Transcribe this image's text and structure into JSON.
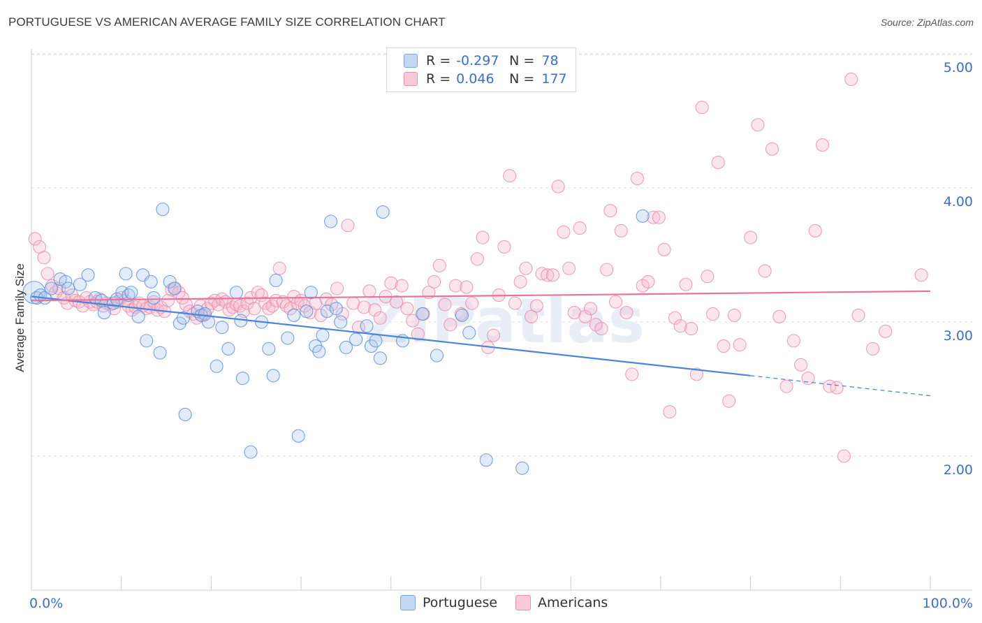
{
  "title": "PORTUGUESE VS AMERICAN AVERAGE FAMILY SIZE CORRELATION CHART",
  "source": "Source: ZipAtlas.com",
  "watermark": "ZIPatlas",
  "legend_top": {
    "rows": [
      {
        "r_label": "R =",
        "r_value": "-0.297",
        "n_label": "N =",
        "n_value": "78",
        "color": "#aac8ee"
      },
      {
        "r_label": "R =",
        "r_value": "0.046",
        "n_label": "N =",
        "n_value": "177",
        "color": "#f6b8cc"
      }
    ]
  },
  "legend_bottom": [
    {
      "label": "Portuguese",
      "color": "#aac8ee"
    },
    {
      "label": "Americans",
      "color": "#f6b8cc"
    }
  ],
  "chart_data": {
    "type": "scatter",
    "title": "PORTUGUESE VS AMERICAN AVERAGE FAMILY SIZE CORRELATION CHART",
    "xlabel": "",
    "ylabel": "Average Family Size",
    "x_tick_labels": [
      "0.0%",
      "100.0%"
    ],
    "y_ticks": [
      2.0,
      3.0,
      4.0,
      5.0
    ],
    "y_tick_labels": [
      "2.00",
      "3.00",
      "4.00",
      "5.00"
    ],
    "xlim": [
      0,
      100
    ],
    "ylim": [
      1.0,
      5.1
    ],
    "grid": true,
    "colors": {
      "portuguese": "#4a86d8",
      "americans": "#e8749c",
      "axis_label": "#3a6fcf"
    },
    "series": [
      {
        "name": "Portuguese",
        "r": -0.297,
        "n": 78,
        "trend": {
          "x0": 0,
          "y0": 3.19,
          "x1": 80,
          "y1": 2.6,
          "dash_to_x": 100,
          "dash_to_y": 2.45
        },
        "points": [
          [
            0.3,
            3.22
          ],
          [
            0.6,
            3.18
          ],
          [
            1.0,
            3.2
          ],
          [
            1.5,
            3.18
          ],
          [
            2.2,
            3.25
          ],
          [
            3.2,
            3.32
          ],
          [
            3.8,
            3.3
          ],
          [
            4.1,
            3.25
          ],
          [
            5.4,
            3.28
          ],
          [
            6.3,
            3.35
          ],
          [
            7.1,
            3.18
          ],
          [
            7.8,
            3.16
          ],
          [
            8.1,
            3.07
          ],
          [
            9.1,
            3.14
          ],
          [
            9.5,
            3.17
          ],
          [
            10.1,
            3.22
          ],
          [
            10.5,
            3.36
          ],
          [
            10.8,
            3.2
          ],
          [
            11.1,
            3.22
          ],
          [
            11.9,
            3.04
          ],
          [
            12.4,
            3.35
          ],
          [
            12.8,
            2.86
          ],
          [
            13.3,
            3.3
          ],
          [
            13.6,
            3.18
          ],
          [
            14.3,
            2.77
          ],
          [
            14.6,
            3.84
          ],
          [
            15.4,
            3.3
          ],
          [
            15.9,
            3.25
          ],
          [
            16.5,
            2.99
          ],
          [
            16.9,
            3.03
          ],
          [
            17.1,
            2.31
          ],
          [
            18.5,
            3.08
          ],
          [
            18.9,
            3.05
          ],
          [
            19.3,
            3.06
          ],
          [
            19.7,
            3.0
          ],
          [
            20.6,
            2.67
          ],
          [
            21.2,
            2.96
          ],
          [
            21.9,
            2.8
          ],
          [
            22.8,
            3.22
          ],
          [
            23.3,
            3.01
          ],
          [
            23.5,
            2.58
          ],
          [
            24.4,
            2.03
          ],
          [
            25.6,
            3.0
          ],
          [
            26.4,
            2.8
          ],
          [
            26.9,
            2.6
          ],
          [
            27.2,
            3.31
          ],
          [
            28.5,
            2.88
          ],
          [
            29.2,
            3.05
          ],
          [
            29.7,
            2.15
          ],
          [
            30.6,
            3.08
          ],
          [
            31.1,
            3.22
          ],
          [
            31.6,
            2.82
          ],
          [
            32.0,
            2.78
          ],
          [
            32.4,
            2.9
          ],
          [
            32.9,
            3.08
          ],
          [
            33.3,
            3.75
          ],
          [
            33.9,
            3.1
          ],
          [
            34.4,
            3.0
          ],
          [
            35.0,
            2.81
          ],
          [
            36.1,
            2.87
          ],
          [
            37.3,
            2.97
          ],
          [
            37.8,
            2.82
          ],
          [
            38.3,
            2.86
          ],
          [
            38.8,
            2.73
          ],
          [
            39.1,
            3.82
          ],
          [
            41.3,
            2.86
          ],
          [
            43.5,
            3.06
          ],
          [
            45.1,
            2.75
          ],
          [
            47.9,
            3.05
          ],
          [
            48.7,
            2.92
          ],
          [
            50.6,
            1.97
          ],
          [
            54.6,
            1.91
          ],
          [
            68.0,
            3.79
          ]
        ]
      },
      {
        "name": "Americans",
        "r": 0.046,
        "n": 177,
        "trend": {
          "x0": 0,
          "y0": 3.16,
          "x1": 100,
          "y1": 3.23
        },
        "points": [
          [
            0.4,
            3.62
          ],
          [
            0.9,
            3.56
          ],
          [
            1.4,
            3.48
          ],
          [
            1.8,
            3.36
          ],
          [
            2.3,
            3.27
          ],
          [
            2.7,
            3.22
          ],
          [
            3.1,
            3.25
          ],
          [
            3.6,
            3.18
          ],
          [
            4.0,
            3.14
          ],
          [
            4.5,
            3.2
          ],
          [
            4.9,
            3.16
          ],
          [
            5.3,
            3.15
          ],
          [
            5.7,
            3.12
          ],
          [
            6.1,
            3.18
          ],
          [
            6.5,
            3.15
          ],
          [
            6.9,
            3.13
          ],
          [
            7.3,
            3.15
          ],
          [
            7.6,
            3.17
          ],
          [
            8.0,
            3.12
          ],
          [
            8.4,
            3.14
          ],
          [
            8.8,
            3.13
          ],
          [
            9.2,
            3.1
          ],
          [
            9.6,
            3.15
          ],
          [
            10.0,
            3.18
          ],
          [
            10.4,
            3.16
          ],
          [
            10.8,
            3.12
          ],
          [
            11.2,
            3.09
          ],
          [
            11.6,
            3.11
          ],
          [
            12.0,
            3.14
          ],
          [
            12.4,
            3.12
          ],
          [
            12.8,
            3.1
          ],
          [
            13.2,
            3.11
          ],
          [
            13.6,
            3.15
          ],
          [
            14.0,
            3.09
          ],
          [
            14.4,
            3.11
          ],
          [
            14.8,
            3.08
          ],
          [
            15.2,
            3.16
          ],
          [
            15.6,
            3.24
          ],
          [
            16.0,
            3.25
          ],
          [
            16.4,
            3.22
          ],
          [
            16.8,
            3.18
          ],
          [
            17.2,
            3.13
          ],
          [
            17.6,
            3.08
          ],
          [
            18.0,
            3.06
          ],
          [
            18.4,
            3.03
          ],
          [
            18.8,
            3.12
          ],
          [
            19.2,
            3.05
          ],
          [
            19.6,
            3.1
          ],
          [
            20.0,
            3.14
          ],
          [
            20.4,
            3.16
          ],
          [
            20.8,
            3.13
          ],
          [
            21.2,
            3.17
          ],
          [
            21.6,
            3.15
          ],
          [
            22.0,
            3.09
          ],
          [
            22.4,
            3.11
          ],
          [
            22.8,
            3.13
          ],
          [
            23.2,
            3.12
          ],
          [
            23.6,
            3.08
          ],
          [
            24.0,
            3.14
          ],
          [
            24.4,
            3.18
          ],
          [
            24.8,
            3.1
          ],
          [
            25.2,
            3.22
          ],
          [
            25.6,
            3.2
          ],
          [
            26.0,
            3.14
          ],
          [
            26.4,
            3.1
          ],
          [
            26.8,
            3.12
          ],
          [
            27.2,
            3.16
          ],
          [
            27.6,
            3.4
          ],
          [
            28.0,
            3.15
          ],
          [
            28.4,
            3.12
          ],
          [
            28.8,
            3.1
          ],
          [
            29.2,
            3.19
          ],
          [
            29.6,
            3.14
          ],
          [
            30.0,
            3.16
          ],
          [
            30.4,
            3.12
          ],
          [
            31.0,
            3.07
          ],
          [
            31.6,
            3.14
          ],
          [
            32.2,
            3.05
          ],
          [
            32.8,
            3.17
          ],
          [
            33.4,
            3.13
          ],
          [
            34.0,
            3.25
          ],
          [
            34.6,
            3.06
          ],
          [
            35.2,
            3.72
          ],
          [
            35.8,
            3.14
          ],
          [
            36.4,
            2.96
          ],
          [
            37.0,
            3.11
          ],
          [
            37.6,
            3.23
          ],
          [
            38.2,
            3.09
          ],
          [
            38.8,
            3.03
          ],
          [
            39.4,
            3.19
          ],
          [
            40.0,
            3.29
          ],
          [
            40.6,
            3.15
          ],
          [
            41.2,
            3.27
          ],
          [
            41.8,
            3.1
          ],
          [
            42.4,
            3.01
          ],
          [
            43.0,
            2.91
          ],
          [
            43.6,
            3.06
          ],
          [
            44.2,
            3.22
          ],
          [
            44.8,
            3.3
          ],
          [
            45.4,
            3.42
          ],
          [
            46.0,
            3.13
          ],
          [
            46.6,
            2.98
          ],
          [
            47.2,
            3.27
          ],
          [
            47.8,
            3.06
          ],
          [
            48.4,
            3.26
          ],
          [
            49.0,
            3.14
          ],
          [
            49.6,
            3.47
          ],
          [
            50.2,
            3.63
          ],
          [
            50.8,
            2.81
          ],
          [
            51.4,
            2.9
          ],
          [
            52.0,
            3.2
          ],
          [
            52.6,
            3.56
          ],
          [
            53.2,
            4.09
          ],
          [
            53.8,
            3.14
          ],
          [
            54.4,
            3.3
          ],
          [
            55.0,
            3.4
          ],
          [
            55.6,
            3.04
          ],
          [
            56.2,
            3.12
          ],
          [
            56.8,
            3.36
          ],
          [
            57.4,
            3.35
          ],
          [
            58.0,
            3.35
          ],
          [
            58.6,
            4.01
          ],
          [
            59.2,
            3.67
          ],
          [
            59.8,
            3.4
          ],
          [
            60.4,
            3.07
          ],
          [
            61.0,
            3.7
          ],
          [
            61.6,
            3.04
          ],
          [
            62.2,
            3.1
          ],
          [
            62.8,
            2.98
          ],
          [
            63.4,
            2.95
          ],
          [
            64.0,
            3.39
          ],
          [
            64.4,
            3.83
          ],
          [
            65.0,
            3.15
          ],
          [
            65.6,
            3.68
          ],
          [
            66.2,
            3.07
          ],
          [
            66.8,
            2.61
          ],
          [
            67.4,
            4.07
          ],
          [
            68.0,
            3.27
          ],
          [
            68.6,
            3.3
          ],
          [
            69.2,
            3.78
          ],
          [
            69.8,
            3.78
          ],
          [
            70.4,
            3.54
          ],
          [
            71.0,
            2.33
          ],
          [
            71.6,
            3.03
          ],
          [
            72.2,
            2.97
          ],
          [
            72.8,
            3.28
          ],
          [
            73.4,
            2.95
          ],
          [
            74.0,
            2.61
          ],
          [
            74.6,
            4.6
          ],
          [
            75.2,
            3.34
          ],
          [
            75.8,
            3.06
          ],
          [
            76.4,
            4.19
          ],
          [
            77.0,
            2.82
          ],
          [
            77.6,
            2.41
          ],
          [
            78.2,
            3.05
          ],
          [
            78.8,
            2.83
          ],
          [
            80.0,
            3.63
          ],
          [
            80.8,
            4.47
          ],
          [
            81.6,
            3.38
          ],
          [
            82.4,
            4.29
          ],
          [
            83.2,
            3.04
          ],
          [
            84.0,
            2.52
          ],
          [
            84.8,
            2.86
          ],
          [
            85.6,
            2.68
          ],
          [
            86.4,
            2.58
          ],
          [
            87.2,
            3.68
          ],
          [
            88.0,
            4.32
          ],
          [
            88.8,
            2.52
          ],
          [
            89.6,
            2.51
          ],
          [
            90.4,
            2.0
          ],
          [
            91.2,
            4.81
          ],
          [
            92.0,
            3.05
          ],
          [
            93.6,
            2.8
          ],
          [
            95.0,
            2.93
          ],
          [
            99.0,
            3.35
          ]
        ]
      }
    ]
  }
}
